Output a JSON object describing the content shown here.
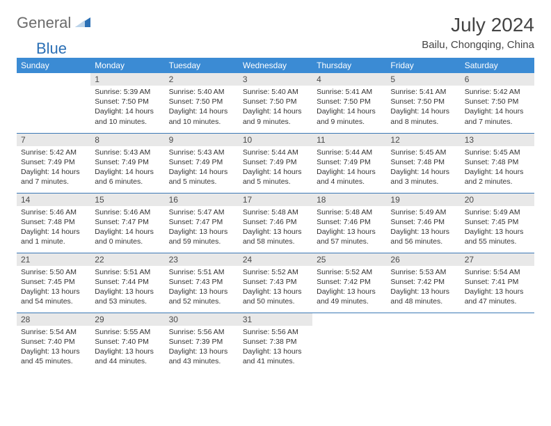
{
  "logo": {
    "word1": "General",
    "word2": "Blue"
  },
  "title": "July 2024",
  "subtitle": "Bailu, Chongqing, China",
  "colors": {
    "header_bg": "#3b8bd4",
    "header_text": "#ffffff",
    "daynum_bg": "#e8e8e8",
    "border": "#3b78b5",
    "logo_gray": "#6b6b6b",
    "logo_blue": "#2a6fb5"
  },
  "day_names": [
    "Sunday",
    "Monday",
    "Tuesday",
    "Wednesday",
    "Thursday",
    "Friday",
    "Saturday"
  ],
  "start_blank_cells": 1,
  "days": [
    {
      "n": 1,
      "sunrise": "5:39 AM",
      "sunset": "7:50 PM",
      "daylight": "14 hours and 10 minutes."
    },
    {
      "n": 2,
      "sunrise": "5:40 AM",
      "sunset": "7:50 PM",
      "daylight": "14 hours and 10 minutes."
    },
    {
      "n": 3,
      "sunrise": "5:40 AM",
      "sunset": "7:50 PM",
      "daylight": "14 hours and 9 minutes."
    },
    {
      "n": 4,
      "sunrise": "5:41 AM",
      "sunset": "7:50 PM",
      "daylight": "14 hours and 9 minutes."
    },
    {
      "n": 5,
      "sunrise": "5:41 AM",
      "sunset": "7:50 PM",
      "daylight": "14 hours and 8 minutes."
    },
    {
      "n": 6,
      "sunrise": "5:42 AM",
      "sunset": "7:50 PM",
      "daylight": "14 hours and 7 minutes."
    },
    {
      "n": 7,
      "sunrise": "5:42 AM",
      "sunset": "7:49 PM",
      "daylight": "14 hours and 7 minutes."
    },
    {
      "n": 8,
      "sunrise": "5:43 AM",
      "sunset": "7:49 PM",
      "daylight": "14 hours and 6 minutes."
    },
    {
      "n": 9,
      "sunrise": "5:43 AM",
      "sunset": "7:49 PM",
      "daylight": "14 hours and 5 minutes."
    },
    {
      "n": 10,
      "sunrise": "5:44 AM",
      "sunset": "7:49 PM",
      "daylight": "14 hours and 5 minutes."
    },
    {
      "n": 11,
      "sunrise": "5:44 AM",
      "sunset": "7:49 PM",
      "daylight": "14 hours and 4 minutes."
    },
    {
      "n": 12,
      "sunrise": "5:45 AM",
      "sunset": "7:48 PM",
      "daylight": "14 hours and 3 minutes."
    },
    {
      "n": 13,
      "sunrise": "5:45 AM",
      "sunset": "7:48 PM",
      "daylight": "14 hours and 2 minutes."
    },
    {
      "n": 14,
      "sunrise": "5:46 AM",
      "sunset": "7:48 PM",
      "daylight": "14 hours and 1 minute."
    },
    {
      "n": 15,
      "sunrise": "5:46 AM",
      "sunset": "7:47 PM",
      "daylight": "14 hours and 0 minutes."
    },
    {
      "n": 16,
      "sunrise": "5:47 AM",
      "sunset": "7:47 PM",
      "daylight": "13 hours and 59 minutes."
    },
    {
      "n": 17,
      "sunrise": "5:48 AM",
      "sunset": "7:46 PM",
      "daylight": "13 hours and 58 minutes."
    },
    {
      "n": 18,
      "sunrise": "5:48 AM",
      "sunset": "7:46 PM",
      "daylight": "13 hours and 57 minutes."
    },
    {
      "n": 19,
      "sunrise": "5:49 AM",
      "sunset": "7:46 PM",
      "daylight": "13 hours and 56 minutes."
    },
    {
      "n": 20,
      "sunrise": "5:49 AM",
      "sunset": "7:45 PM",
      "daylight": "13 hours and 55 minutes."
    },
    {
      "n": 21,
      "sunrise": "5:50 AM",
      "sunset": "7:45 PM",
      "daylight": "13 hours and 54 minutes."
    },
    {
      "n": 22,
      "sunrise": "5:51 AM",
      "sunset": "7:44 PM",
      "daylight": "13 hours and 53 minutes."
    },
    {
      "n": 23,
      "sunrise": "5:51 AM",
      "sunset": "7:43 PM",
      "daylight": "13 hours and 52 minutes."
    },
    {
      "n": 24,
      "sunrise": "5:52 AM",
      "sunset": "7:43 PM",
      "daylight": "13 hours and 50 minutes."
    },
    {
      "n": 25,
      "sunrise": "5:52 AM",
      "sunset": "7:42 PM",
      "daylight": "13 hours and 49 minutes."
    },
    {
      "n": 26,
      "sunrise": "5:53 AM",
      "sunset": "7:42 PM",
      "daylight": "13 hours and 48 minutes."
    },
    {
      "n": 27,
      "sunrise": "5:54 AM",
      "sunset": "7:41 PM",
      "daylight": "13 hours and 47 minutes."
    },
    {
      "n": 28,
      "sunrise": "5:54 AM",
      "sunset": "7:40 PM",
      "daylight": "13 hours and 45 minutes."
    },
    {
      "n": 29,
      "sunrise": "5:55 AM",
      "sunset": "7:40 PM",
      "daylight": "13 hours and 44 minutes."
    },
    {
      "n": 30,
      "sunrise": "5:56 AM",
      "sunset": "7:39 PM",
      "daylight": "13 hours and 43 minutes."
    },
    {
      "n": 31,
      "sunrise": "5:56 AM",
      "sunset": "7:38 PM",
      "daylight": "13 hours and 41 minutes."
    }
  ],
  "labels": {
    "sunrise": "Sunrise:",
    "sunset": "Sunset:",
    "daylight": "Daylight:"
  }
}
